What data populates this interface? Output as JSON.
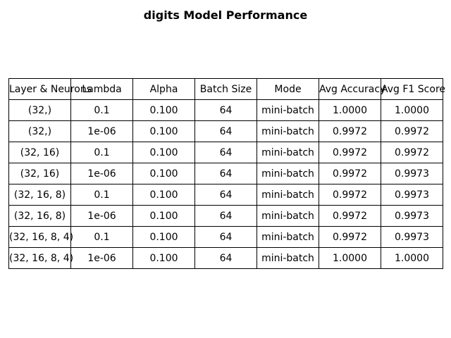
{
  "chart_data": {
    "type": "table",
    "title": "digits Model Performance",
    "columns": [
      "Layer & Neurons",
      "Lambda",
      "Alpha",
      "Batch Size",
      "Mode",
      "Avg Accuracy",
      "Avg F1 Score"
    ],
    "rows": [
      [
        "(32,)",
        "0.1",
        "0.100",
        "64",
        "mini-batch",
        "1.0000",
        "1.0000"
      ],
      [
        "(32,)",
        "1e-06",
        "0.100",
        "64",
        "mini-batch",
        "0.9972",
        "0.9972"
      ],
      [
        "(32, 16)",
        "0.1",
        "0.100",
        "64",
        "mini-batch",
        "0.9972",
        "0.9972"
      ],
      [
        "(32, 16)",
        "1e-06",
        "0.100",
        "64",
        "mini-batch",
        "0.9972",
        "0.9973"
      ],
      [
        "(32, 16, 8)",
        "0.1",
        "0.100",
        "64",
        "mini-batch",
        "0.9972",
        "0.9973"
      ],
      [
        "(32, 16, 8)",
        "1e-06",
        "0.100",
        "64",
        "mini-batch",
        "0.9972",
        "0.9973"
      ],
      [
        "(32, 16, 8, 4)",
        "0.1",
        "0.100",
        "64",
        "mini-batch",
        "0.9972",
        "0.9973"
      ],
      [
        "(32, 16, 8, 4)",
        "1e-06",
        "0.100",
        "64",
        "mini-batch",
        "1.0000",
        "1.0000"
      ]
    ]
  }
}
